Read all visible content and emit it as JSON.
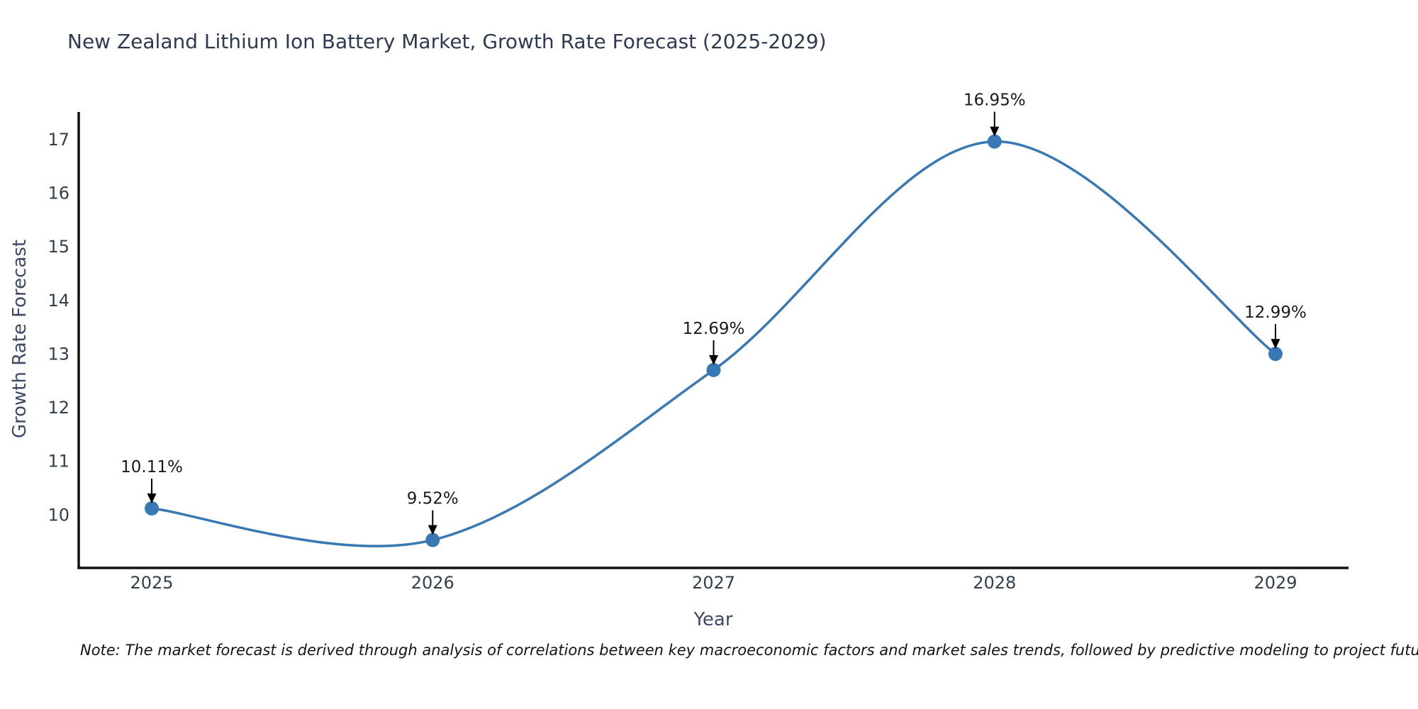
{
  "title": "New Zealand Lithium Ion Battery Market, Growth Rate Forecast (2025-2029)",
  "note": "Note: The market forecast is derived through analysis of correlations between key macroeconomic factors and market sales trends, followed by predictive modeling to project future sales",
  "chart_data": {
    "type": "line",
    "title": "New Zealand Lithium Ion Battery Market, Growth Rate Forecast (2025-2029)",
    "xlabel": "Year",
    "ylabel": "Growth Rate Forecast",
    "x": [
      2025,
      2026,
      2027,
      2028,
      2029
    ],
    "categories": [
      "2025",
      "2026",
      "2027",
      "2028",
      "2029"
    ],
    "values": [
      10.11,
      9.52,
      12.69,
      16.95,
      12.99
    ],
    "labels": [
      "10.11%",
      "9.52%",
      "12.69%",
      "16.95%",
      "12.99%"
    ],
    "yticks": [
      10,
      11,
      12,
      13,
      14,
      15,
      16,
      17
    ],
    "ylim": [
      9.0,
      17.5
    ],
    "xlim": [
      2024.74,
      2029.26
    ],
    "grid": false,
    "legend": "none",
    "line_shape": "smooth-spline",
    "marker": "circle",
    "line_color": "#3878b4",
    "marker_color": "#3878b4",
    "axis_color": "#111111",
    "tick_color": "#333f4d",
    "title_color": "#2e3a52",
    "axis_label_color": "#3c4a66",
    "annotation_color": "#1a1a1a",
    "annotation_arrow_color": "#000000"
  }
}
